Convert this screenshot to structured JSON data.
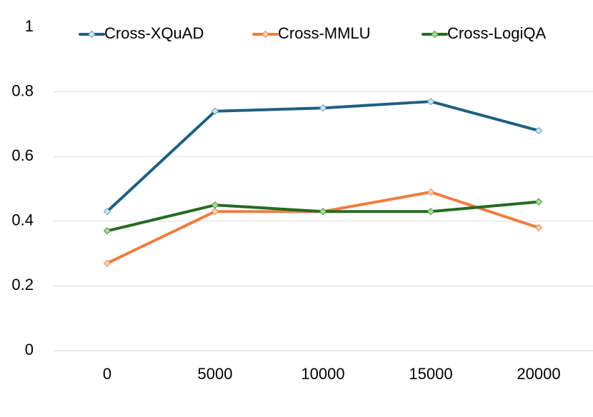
{
  "chart_data": {
    "type": "line",
    "title": "",
    "xlabel": "",
    "ylabel": "",
    "categories": [
      "0",
      "5000",
      "10000",
      "15000",
      "20000"
    ],
    "y_ticks": [
      "0",
      "0.2",
      "0.4",
      "0.6",
      "0.8",
      "1"
    ],
    "ylim": [
      0,
      1
    ],
    "grid": true,
    "legend_position": "top",
    "series": [
      {
        "name": "Cross-XQuAD",
        "values": [
          0.43,
          0.74,
          0.75,
          0.77,
          0.68
        ],
        "color": "#1f5f80",
        "marker_fill": "#cfe6f5",
        "marker_stroke": "#5f9cc4"
      },
      {
        "name": "Cross-MMLU",
        "values": [
          0.27,
          0.43,
          0.43,
          0.49,
          0.38
        ],
        "color": "#ee7d3f",
        "marker_fill": "#fad3b5",
        "marker_stroke": "#e08a55"
      },
      {
        "name": "Cross-LogiQA",
        "values": [
          0.37,
          0.45,
          0.43,
          0.43,
          0.46
        ],
        "color": "#236b22",
        "marker_fill": "#a8dc95",
        "marker_stroke": "#4f9a48"
      }
    ]
  }
}
